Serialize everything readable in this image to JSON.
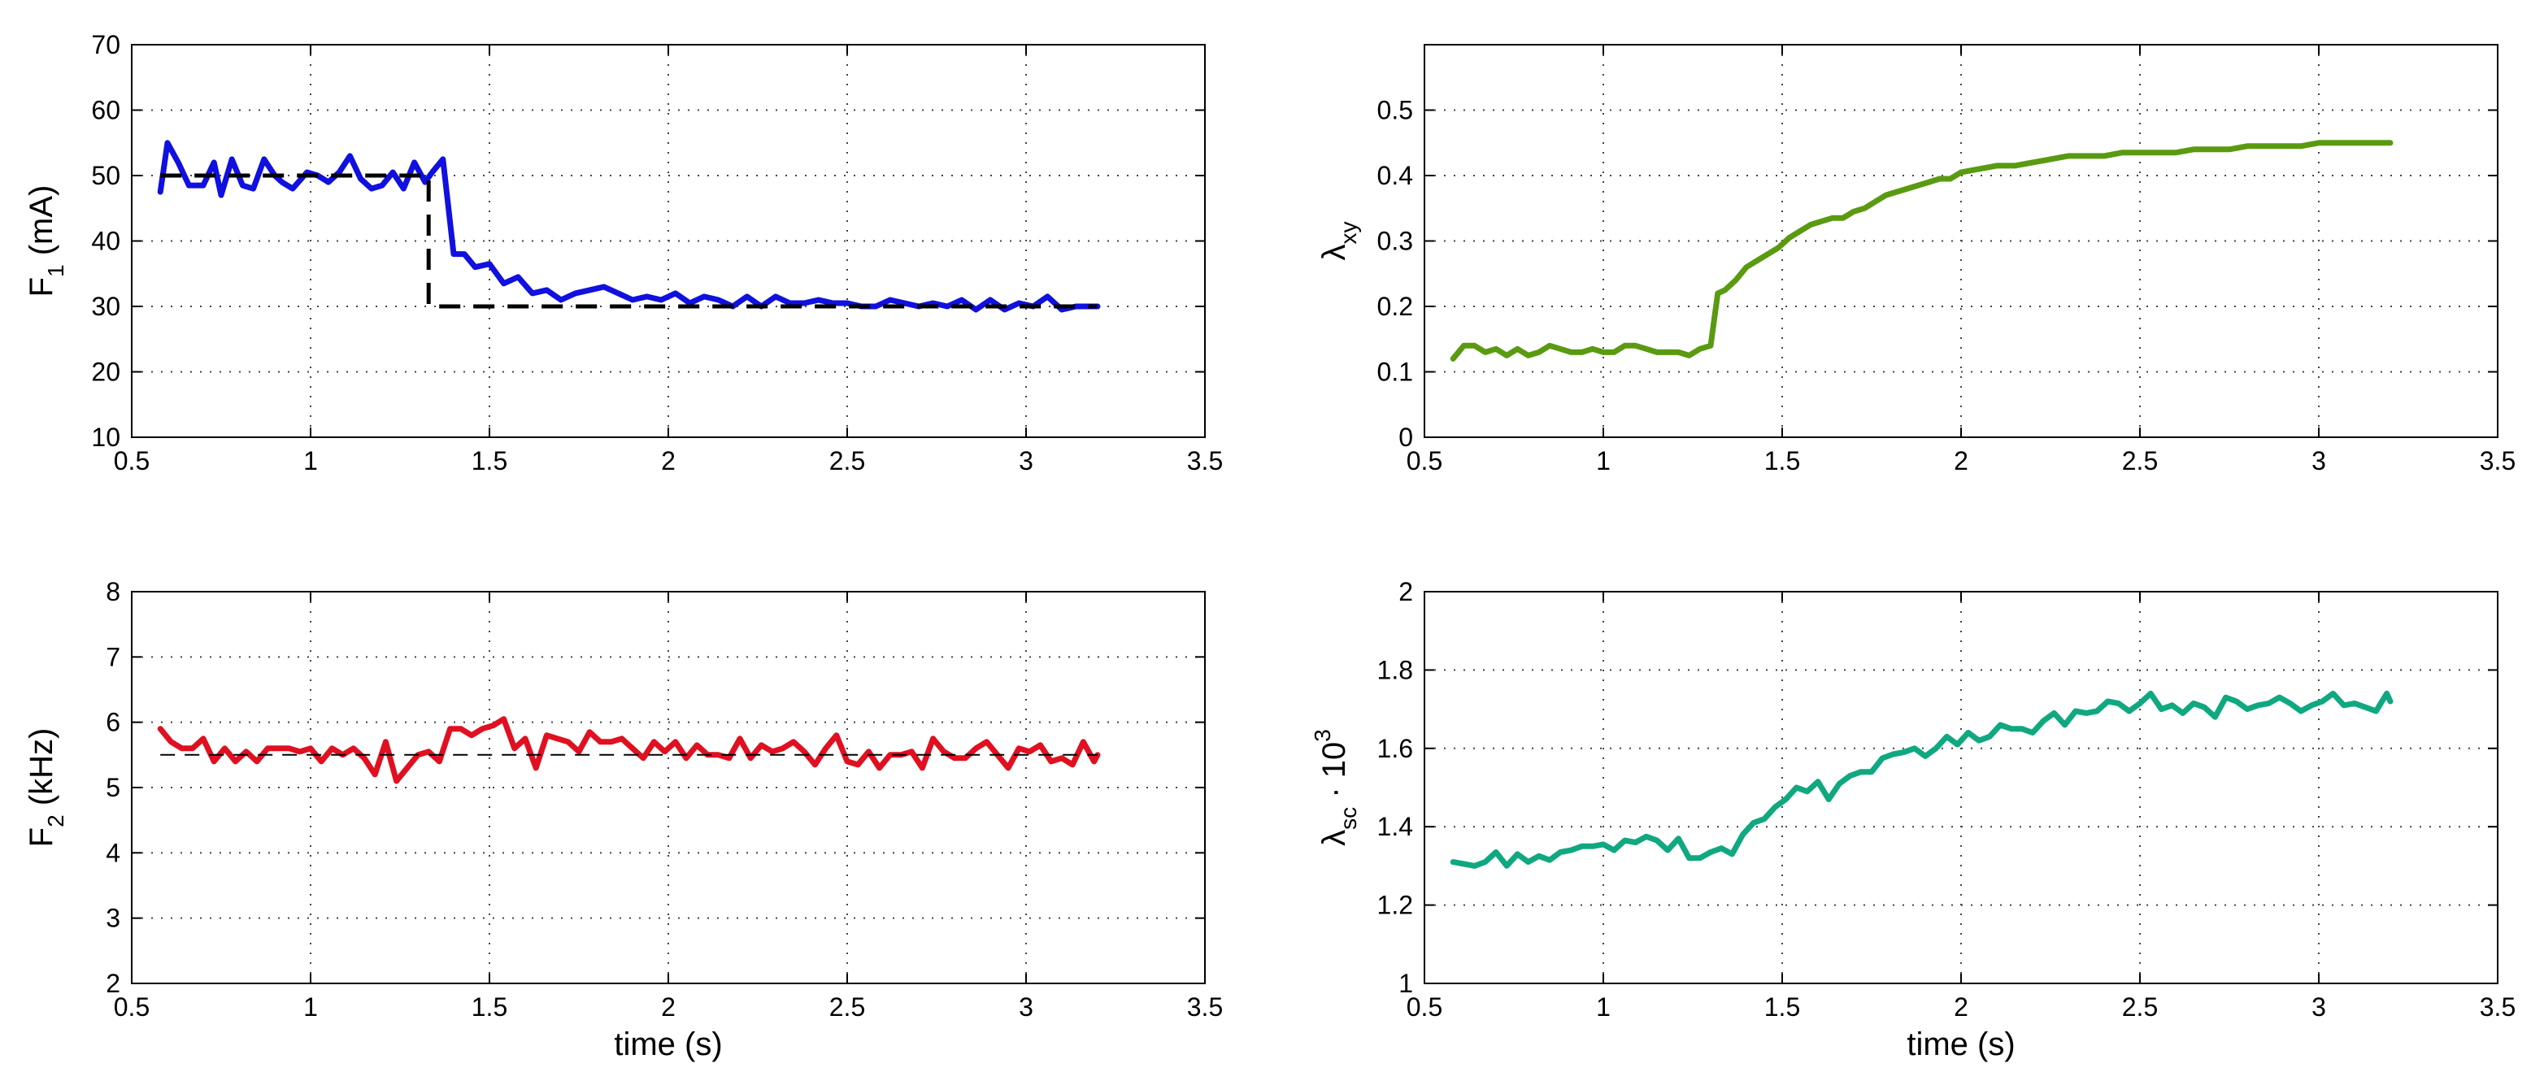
{
  "colors": {
    "blue": "#1010e0",
    "black": "#000000",
    "red": "#e01020",
    "olive": "#5a9a10",
    "teal": "#10a880"
  },
  "chart_data": [
    {
      "id": "p1",
      "type": "line",
      "xlim": [
        0.5,
        3.5
      ],
      "ylim": [
        10,
        70
      ],
      "xticks": [
        0.5,
        1,
        1.5,
        2,
        2.5,
        3,
        3.5
      ],
      "yticks": [
        10,
        20,
        30,
        40,
        50,
        60,
        70
      ],
      "xtick_labels": [
        "0.5",
        "1",
        "1.5",
        "2",
        "2.5",
        "3",
        "3.5"
      ],
      "ytick_labels": [
        "10",
        "20",
        "30",
        "40",
        "50",
        "60",
        "70"
      ],
      "xlabel": "",
      "ylabel": {
        "main": "F",
        "sub": "1",
        "tail": " (mA)"
      },
      "grid": true,
      "series": [
        {
          "role": "measured",
          "color": "#1010e0",
          "x": [
            0.58,
            0.6,
            0.63,
            0.66,
            0.7,
            0.73,
            0.75,
            0.78,
            0.81,
            0.84,
            0.87,
            0.9,
            0.92,
            0.95,
            0.99,
            1.02,
            1.05,
            1.08,
            1.11,
            1.14,
            1.17,
            1.2,
            1.23,
            1.26,
            1.29,
            1.32,
            1.34,
            1.37,
            1.4,
            1.43,
            1.46,
            1.5,
            1.54,
            1.58,
            1.62,
            1.66,
            1.7,
            1.74,
            1.78,
            1.82,
            1.86,
            1.9,
            1.94,
            1.98,
            2.02,
            2.06,
            2.1,
            2.14,
            2.18,
            2.22,
            2.26,
            2.3,
            2.34,
            2.38,
            2.42,
            2.46,
            2.5,
            2.54,
            2.58,
            2.62,
            2.66,
            2.7,
            2.74,
            2.78,
            2.82,
            2.86,
            2.9,
            2.94,
            2.98,
            3.02,
            3.06,
            3.1,
            3.14,
            3.17,
            3.2
          ],
          "y": [
            47.5,
            55,
            52,
            48.5,
            48.5,
            52,
            47,
            52.5,
            48.5,
            48,
            52.5,
            50,
            49,
            48,
            50.5,
            50,
            49,
            50.5,
            53,
            49.5,
            48,
            48.5,
            50.5,
            48,
            52,
            49,
            50.5,
            52.5,
            38,
            38,
            36,
            36.5,
            33.5,
            34.5,
            32,
            32.5,
            31,
            32,
            32.5,
            33,
            32,
            31,
            31.5,
            31,
            32,
            30.5,
            31.5,
            31,
            30,
            31.5,
            30,
            31.5,
            30.5,
            30.5,
            31,
            30.5,
            30.5,
            30,
            30,
            31,
            30.5,
            30,
            30.5,
            30,
            31,
            29.5,
            31,
            29.5,
            30.5,
            30,
            31.5,
            29.5,
            30,
            30,
            30
          ]
        },
        {
          "role": "reference",
          "color": "#000000",
          "dashed": "long",
          "x": [
            0.58,
            1.33,
            1.33,
            3.2
          ],
          "y": [
            50,
            50,
            30,
            30
          ]
        }
      ]
    },
    {
      "id": "p2",
      "type": "line",
      "xlim": [
        0.5,
        3.5
      ],
      "ylim": [
        0,
        0.6
      ],
      "xticks": [
        0.5,
        1,
        1.5,
        2,
        2.5,
        3,
        3.5
      ],
      "yticks": [
        0,
        0.1,
        0.2,
        0.3,
        0.4,
        0.5
      ],
      "xtick_labels": [
        "0.5",
        "1",
        "1.5",
        "2",
        "2.5",
        "3",
        "3.5"
      ],
      "ytick_labels": [
        "0",
        "0.1",
        "0.2",
        "0.3",
        "0.4",
        "0.5"
      ],
      "xlabel": "",
      "ylabel": {
        "main": "λ",
        "sub": "xy",
        "tail": ""
      },
      "grid": true,
      "series": [
        {
          "role": "measured",
          "color": "#5a9a10",
          "x": [
            0.58,
            0.61,
            0.64,
            0.67,
            0.7,
            0.73,
            0.76,
            0.79,
            0.82,
            0.85,
            0.88,
            0.91,
            0.94,
            0.97,
            1.0,
            1.03,
            1.06,
            1.09,
            1.12,
            1.15,
            1.18,
            1.21,
            1.24,
            1.27,
            1.3,
            1.32,
            1.34,
            1.37,
            1.4,
            1.43,
            1.46,
            1.49,
            1.52,
            1.55,
            1.58,
            1.61,
            1.64,
            1.67,
            1.7,
            1.73,
            1.76,
            1.79,
            1.82,
            1.85,
            1.88,
            1.91,
            1.94,
            1.97,
            2.0,
            2.05,
            2.1,
            2.15,
            2.2,
            2.25,
            2.3,
            2.35,
            2.4,
            2.45,
            2.5,
            2.55,
            2.6,
            2.65,
            2.7,
            2.75,
            2.8,
            2.85,
            2.9,
            2.95,
            3.0,
            3.05,
            3.1,
            3.15,
            3.2
          ],
          "y": [
            0.12,
            0.14,
            0.14,
            0.13,
            0.135,
            0.125,
            0.135,
            0.125,
            0.13,
            0.14,
            0.135,
            0.13,
            0.13,
            0.135,
            0.13,
            0.13,
            0.14,
            0.14,
            0.135,
            0.13,
            0.13,
            0.13,
            0.125,
            0.135,
            0.14,
            0.22,
            0.225,
            0.24,
            0.26,
            0.27,
            0.28,
            0.29,
            0.305,
            0.315,
            0.325,
            0.33,
            0.335,
            0.335,
            0.345,
            0.35,
            0.36,
            0.37,
            0.375,
            0.38,
            0.385,
            0.39,
            0.395,
            0.395,
            0.405,
            0.41,
            0.415,
            0.415,
            0.42,
            0.425,
            0.43,
            0.43,
            0.43,
            0.435,
            0.435,
            0.435,
            0.435,
            0.44,
            0.44,
            0.44,
            0.445,
            0.445,
            0.445,
            0.445,
            0.45,
            0.45,
            0.45,
            0.45,
            0.45
          ]
        }
      ]
    },
    {
      "id": "p3",
      "type": "line",
      "xlim": [
        0.5,
        3.5
      ],
      "ylim": [
        2,
        8
      ],
      "xticks": [
        0.5,
        1,
        1.5,
        2,
        2.5,
        3,
        3.5
      ],
      "yticks": [
        2,
        3,
        4,
        5,
        6,
        7,
        8
      ],
      "xtick_labels": [
        "0.5",
        "1",
        "1.5",
        "2",
        "2.5",
        "3",
        "3.5"
      ],
      "ytick_labels": [
        "2",
        "3",
        "4",
        "5",
        "6",
        "7",
        "8"
      ],
      "xlabel": "time (s)",
      "ylabel": {
        "main": "F",
        "sub": "2",
        "tail": " (kHz)"
      },
      "grid": true,
      "series": [
        {
          "role": "measured",
          "color": "#e01020",
          "x": [
            0.58,
            0.61,
            0.64,
            0.67,
            0.7,
            0.73,
            0.76,
            0.79,
            0.82,
            0.85,
            0.88,
            0.91,
            0.94,
            0.97,
            1.0,
            1.03,
            1.06,
            1.09,
            1.12,
            1.15,
            1.18,
            1.21,
            1.24,
            1.27,
            1.3,
            1.33,
            1.36,
            1.39,
            1.42,
            1.45,
            1.48,
            1.51,
            1.54,
            1.57,
            1.6,
            1.63,
            1.66,
            1.69,
            1.72,
            1.75,
            1.78,
            1.81,
            1.84,
            1.87,
            1.9,
            1.93,
            1.96,
            1.99,
            2.02,
            2.05,
            2.08,
            2.11,
            2.14,
            2.17,
            2.2,
            2.23,
            2.26,
            2.29,
            2.32,
            2.35,
            2.38,
            2.41,
            2.44,
            2.47,
            2.5,
            2.53,
            2.56,
            2.59,
            2.62,
            2.65,
            2.68,
            2.71,
            2.74,
            2.77,
            2.8,
            2.83,
            2.86,
            2.89,
            2.92,
            2.95,
            2.98,
            3.01,
            3.04,
            3.07,
            3.1,
            3.13,
            3.16,
            3.19,
            3.2
          ],
          "y": [
            5.9,
            5.7,
            5.6,
            5.6,
            5.75,
            5.4,
            5.6,
            5.4,
            5.55,
            5.4,
            5.6,
            5.6,
            5.6,
            5.55,
            5.6,
            5.4,
            5.6,
            5.5,
            5.6,
            5.45,
            5.2,
            5.7,
            5.1,
            5.3,
            5.5,
            5.55,
            5.4,
            5.9,
            5.9,
            5.8,
            5.9,
            5.95,
            6.05,
            5.6,
            5.75,
            5.3,
            5.8,
            5.75,
            5.7,
            5.55,
            5.85,
            5.7,
            5.7,
            5.75,
            5.6,
            5.45,
            5.7,
            5.55,
            5.7,
            5.45,
            5.65,
            5.5,
            5.5,
            5.45,
            5.75,
            5.45,
            5.65,
            5.55,
            5.6,
            5.7,
            5.55,
            5.35,
            5.6,
            5.8,
            5.4,
            5.35,
            5.55,
            5.3,
            5.5,
            5.5,
            5.55,
            5.3,
            5.75,
            5.55,
            5.45,
            5.45,
            5.6,
            5.7,
            5.5,
            5.3,
            5.6,
            5.55,
            5.65,
            5.4,
            5.45,
            5.35,
            5.7,
            5.4,
            5.5
          ]
        },
        {
          "role": "reference",
          "color": "#000000",
          "dashed": "thin",
          "x": [
            0.58,
            3.2
          ],
          "y": [
            5.5,
            5.5
          ]
        }
      ]
    },
    {
      "id": "p4",
      "type": "line",
      "xlim": [
        0.5,
        3.5
      ],
      "ylim": [
        1,
        2
      ],
      "xticks": [
        0.5,
        1,
        1.5,
        2,
        2.5,
        3,
        3.5
      ],
      "yticks": [
        1,
        1.2,
        1.4,
        1.6,
        1.8,
        2
      ],
      "xtick_labels": [
        "0.5",
        "1",
        "1.5",
        "2",
        "2.5",
        "3",
        "3.5"
      ],
      "ytick_labels": [
        "1",
        "1.2",
        "1.4",
        "1.6",
        "1.8",
        "2"
      ],
      "xlabel": "time (s)",
      "ylabel": {
        "main": "λ",
        "sub": "sc",
        "tail": " · 10",
        "sup": "3"
      },
      "grid": true,
      "series": [
        {
          "role": "measured",
          "color": "#10a880",
          "x": [
            0.58,
            0.61,
            0.64,
            0.67,
            0.7,
            0.73,
            0.76,
            0.79,
            0.82,
            0.85,
            0.88,
            0.91,
            0.94,
            0.97,
            1.0,
            1.03,
            1.06,
            1.09,
            1.12,
            1.15,
            1.18,
            1.21,
            1.24,
            1.27,
            1.3,
            1.33,
            1.36,
            1.39,
            1.42,
            1.45,
            1.48,
            1.51,
            1.54,
            1.57,
            1.6,
            1.63,
            1.66,
            1.69,
            1.72,
            1.75,
            1.78,
            1.81,
            1.84,
            1.87,
            1.9,
            1.93,
            1.96,
            1.99,
            2.02,
            2.05,
            2.08,
            2.11,
            2.14,
            2.17,
            2.2,
            2.23,
            2.26,
            2.29,
            2.32,
            2.35,
            2.38,
            2.41,
            2.44,
            2.47,
            2.5,
            2.53,
            2.56,
            2.59,
            2.62,
            2.65,
            2.68,
            2.71,
            2.74,
            2.77,
            2.8,
            2.83,
            2.86,
            2.89,
            2.92,
            2.95,
            2.98,
            3.01,
            3.04,
            3.07,
            3.1,
            3.13,
            3.16,
            3.19,
            3.2
          ],
          "y": [
            1.31,
            1.305,
            1.3,
            1.31,
            1.335,
            1.3,
            1.33,
            1.31,
            1.325,
            1.315,
            1.335,
            1.34,
            1.35,
            1.35,
            1.355,
            1.34,
            1.365,
            1.36,
            1.375,
            1.365,
            1.34,
            1.37,
            1.32,
            1.32,
            1.335,
            1.345,
            1.33,
            1.38,
            1.41,
            1.42,
            1.45,
            1.47,
            1.5,
            1.49,
            1.515,
            1.47,
            1.51,
            1.53,
            1.54,
            1.54,
            1.575,
            1.585,
            1.59,
            1.6,
            1.58,
            1.6,
            1.63,
            1.61,
            1.64,
            1.62,
            1.63,
            1.66,
            1.65,
            1.65,
            1.64,
            1.67,
            1.69,
            1.66,
            1.695,
            1.69,
            1.695,
            1.72,
            1.715,
            1.695,
            1.715,
            1.74,
            1.7,
            1.71,
            1.69,
            1.715,
            1.705,
            1.68,
            1.73,
            1.72,
            1.7,
            1.71,
            1.715,
            1.73,
            1.715,
            1.695,
            1.71,
            1.72,
            1.74,
            1.71,
            1.715,
            1.705,
            1.695,
            1.74,
            1.72
          ]
        }
      ]
    }
  ]
}
